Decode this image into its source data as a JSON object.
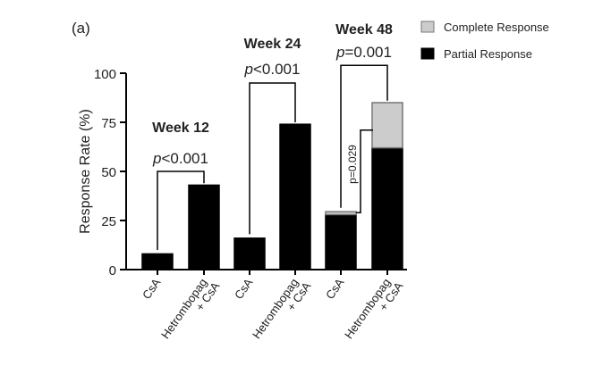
{
  "panel_label": "(a)",
  "chart_data": {
    "type": "bar",
    "stacked": true,
    "ylabel": "Response Rate (%)",
    "ylim": [
      0,
      100
    ],
    "yticks": [
      0,
      25,
      50,
      75,
      100
    ],
    "categories": [
      "CsA",
      "Hetrombopag + CsA",
      "CsA",
      "Hetrombopag + CsA",
      "CsA",
      "Hetrombopag + CsA"
    ],
    "category_lines": [
      [
        "CsA"
      ],
      [
        "Hetrombopag",
        "+ CsA"
      ],
      [
        "CsA"
      ],
      [
        "Hetrombopag",
        "+ CsA"
      ],
      [
        "CsA"
      ],
      [
        "Hetrombopag",
        "+ CsA"
      ]
    ],
    "series": [
      {
        "name": "Partial Response",
        "color": "#000000",
        "values": [
          8,
          43,
          16,
          74,
          28,
          62
        ]
      },
      {
        "name": "Complete Response",
        "color": "#cccccc",
        "values": [
          0,
          0,
          0,
          0,
          1.5,
          23
        ]
      }
    ],
    "groups": [
      {
        "title": "Week 12",
        "p_prefix": "p",
        "p_rest": "<0.001",
        "bars": [
          0,
          1
        ]
      },
      {
        "title": "Week 24",
        "p_prefix": "p",
        "p_rest": "<0.001",
        "bars": [
          2,
          3
        ]
      },
      {
        "title": "Week 48",
        "p_prefix": "p",
        "p_rest": "=0.001",
        "bars": [
          4,
          5
        ]
      }
    ],
    "extra_comparison": {
      "label": "p=0.029",
      "bars": [
        4,
        5
      ]
    },
    "legend": {
      "placement": "top-right",
      "entries": [
        "Complete Response",
        "Partial Response"
      ]
    }
  }
}
